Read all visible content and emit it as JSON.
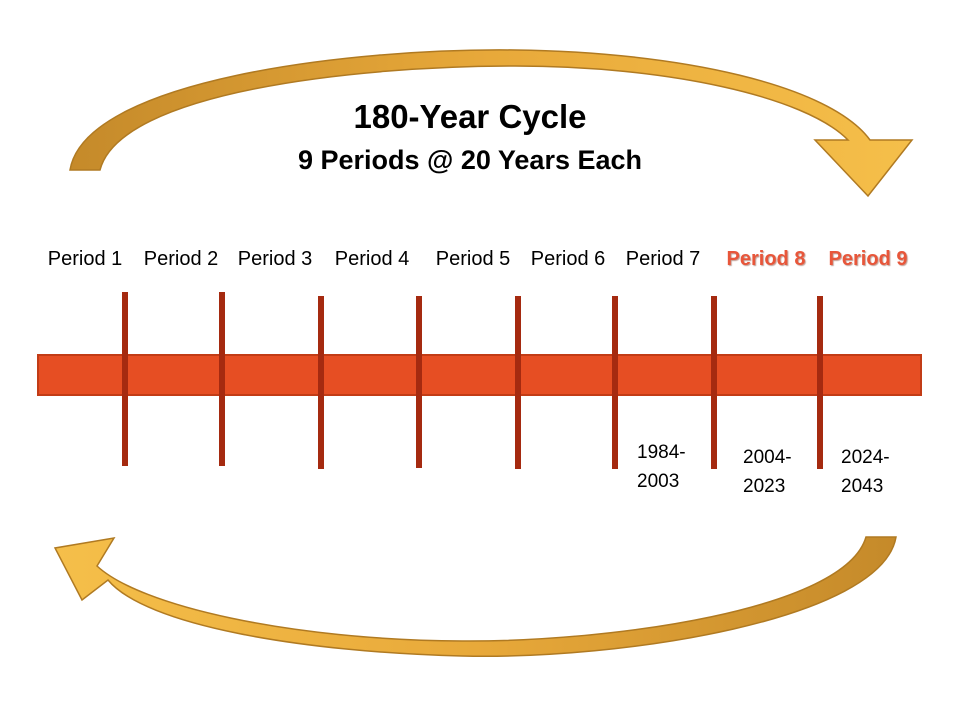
{
  "title": "180-Year  Cycle",
  "subtitle": "9 Periods @ 20 Years Each",
  "periods": [
    {
      "label": "Period 1",
      "highlight": false
    },
    {
      "label": "Period 2",
      "highlight": false
    },
    {
      "label": "Period 3",
      "highlight": false
    },
    {
      "label": "Period 4",
      "highlight": false
    },
    {
      "label": "Period 5",
      "highlight": false
    },
    {
      "label": "Period 6",
      "highlight": false
    },
    {
      "label": "Period 7",
      "highlight": false
    },
    {
      "label": "Period 8",
      "highlight": true
    },
    {
      "label": "Period 9",
      "highlight": true
    }
  ],
  "date_ranges": [
    {
      "after_marker": 6,
      "text": "1984-\n2003"
    },
    {
      "after_marker": 7,
      "text": "2004-\n2023"
    },
    {
      "after_marker": 8,
      "text": "2024-\n2043"
    }
  ],
  "arrows": [
    {
      "name": "top-arrow",
      "direction": "clockwise-right"
    },
    {
      "name": "bottom-arrow",
      "direction": "counterclockwise-left"
    }
  ],
  "colors": {
    "bar_fill": "#e64e23",
    "bar_stroke": "#c23c16",
    "marker": "#a52a10",
    "highlight_text": "#e8563a",
    "arrow_fill_light": "#f5bf4a",
    "arrow_fill_dark": "#c58a2a",
    "arrow_stroke": "#b07a22"
  }
}
